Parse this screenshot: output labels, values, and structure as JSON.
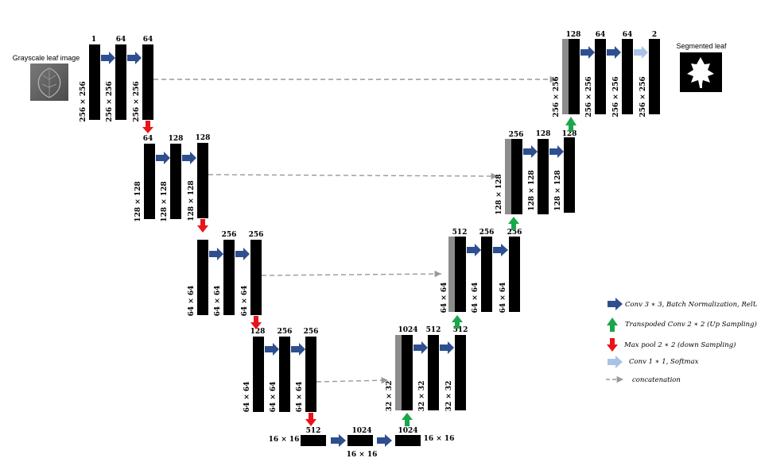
{
  "colors": {
    "conv": "#2e4f8f",
    "up": "#1aa64a",
    "pool": "#e8141a",
    "softmax": "#a9c3e6",
    "concat": "#999999",
    "block": "#000000",
    "skip_block": "#8c8c8c"
  },
  "input": {
    "caption": "Grayscale leaf image",
    "icon": "leaf-photo-icon"
  },
  "output": {
    "caption": "Segmented leaf",
    "icon": "leaf-mask-icon"
  },
  "blocks": [
    {
      "top": "1",
      "side": "256 × 256"
    },
    {
      "top": "64",
      "side": "256 × 256"
    },
    {
      "top": "64",
      "side": "256 × 256"
    },
    {
      "top": "64",
      "side": "128 × 128"
    },
    {
      "top": "128",
      "side": "128 × 128"
    },
    {
      "top": "128",
      "side": "128 × 128"
    },
    {
      "top": "",
      "side": "64 × 64"
    },
    {
      "top": "256",
      "side": "64 × 64"
    },
    {
      "top": "256",
      "side": "64 × 64"
    },
    {
      "top": "128",
      "side": "64 × 64"
    },
    {
      "top": "256",
      "side": "64 × 64"
    },
    {
      "top": "256",
      "side": "64 × 64"
    },
    {
      "top": "512",
      "side": "16 × 16"
    },
    {
      "top": "1024",
      "side": "16 × 16"
    },
    {
      "top": "1024",
      "side": "16 × 16"
    },
    {
      "top": "1024",
      "side": "32 × 32"
    },
    {
      "top": "512",
      "side": "32 × 32"
    },
    {
      "top": "512",
      "side": "32 × 32"
    },
    {
      "top": "512",
      "side": "64 × 64"
    },
    {
      "top": "256",
      "side": "64 × 64"
    },
    {
      "top": "256",
      "side": "64 × 64"
    },
    {
      "top": "256",
      "side": "128 × 128"
    },
    {
      "top": "128",
      "side": "128 × 128"
    },
    {
      "top": "128",
      "side": "128 × 128"
    },
    {
      "top": "128",
      "side": "256 × 256"
    },
    {
      "top": "64",
      "side": "256 × 256"
    },
    {
      "top": "64",
      "side": "256 × 256"
    },
    {
      "top": "2",
      "side": "256 × 256"
    }
  ],
  "legend": [
    {
      "icon": "conv-arrow-icon",
      "text": "Conv 3 ∗ 3, Batch Normalization, RelU"
    },
    {
      "icon": "upsample-arrow-icon",
      "text": "Transpoded Conv 2 ∗ 2 (Up Sampling)"
    },
    {
      "icon": "maxpool-arrow-icon",
      "text": "Max pool 2 ∗ 2 (down Sampling)"
    },
    {
      "icon": "softmax-arrow-icon",
      "text": "Conv 1 ∗ 1, Softmax"
    },
    {
      "icon": "concat-arrow-icon",
      "text": "concatenation"
    }
  ]
}
